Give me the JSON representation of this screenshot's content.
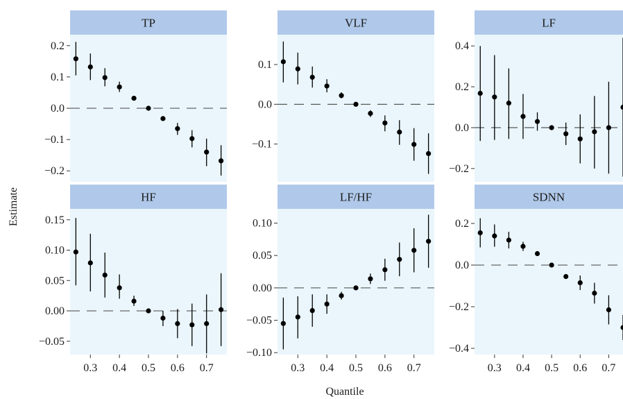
{
  "figure": {
    "xlabel": "Quantile",
    "ylabel": "Estimate"
  },
  "colors": {
    "panel_bg": "#eaf6fb",
    "strip_bg": "#b0c9ea",
    "point": "#000000",
    "reference_line": "#444444"
  },
  "chart_data": [
    {
      "type": "scatter",
      "title": "TP",
      "x": [
        0.25,
        0.3,
        0.35,
        0.4,
        0.45,
        0.5,
        0.55,
        0.6,
        0.65,
        0.7,
        0.75
      ],
      "y": [
        0.158,
        0.132,
        0.098,
        0.068,
        0.032,
        0.0,
        -0.033,
        -0.065,
        -0.097,
        -0.14,
        -0.168
      ],
      "lower": [
        0.105,
        0.09,
        0.07,
        0.052,
        0.026,
        -0.003,
        -0.038,
        -0.085,
        -0.125,
        -0.185,
        -0.215
      ],
      "upper": [
        0.212,
        0.175,
        0.128,
        0.085,
        0.038,
        0.003,
        -0.028,
        -0.047,
        -0.07,
        -0.097,
        -0.118
      ],
      "xlim": [
        0.23,
        0.77
      ],
      "ylim": [
        -0.235,
        0.235
      ],
      "x_ticks": [
        0.3,
        0.4,
        0.5,
        0.6,
        0.7
      ],
      "x_tick_labels": [
        "0.3",
        "0.4",
        "0.5",
        "0.6",
        "0.7"
      ],
      "y_ticks": [
        -0.2,
        -0.1,
        0.0,
        0.1,
        0.2
      ],
      "y_tick_labels": [
        "−0.2",
        "−0.1",
        "0.0",
        "0.1",
        "0.2"
      ],
      "reference_line": 0,
      "grid": false
    },
    {
      "type": "scatter",
      "title": "VLF",
      "x": [
        0.25,
        0.3,
        0.35,
        0.4,
        0.45,
        0.5,
        0.55,
        0.6,
        0.65,
        0.7,
        0.75
      ],
      "y": [
        0.107,
        0.089,
        0.068,
        0.046,
        0.022,
        0.0,
        -0.023,
        -0.047,
        -0.07,
        -0.101,
        -0.124
      ],
      "lower": [
        0.055,
        0.05,
        0.042,
        0.03,
        0.015,
        -0.002,
        -0.032,
        -0.068,
        -0.102,
        -0.142,
        -0.175
      ],
      "upper": [
        0.158,
        0.13,
        0.095,
        0.063,
        0.03,
        0.002,
        -0.015,
        -0.028,
        -0.04,
        -0.06,
        -0.073
      ],
      "xlim": [
        0.23,
        0.77
      ],
      "ylim": [
        -0.195,
        0.175
      ],
      "x_ticks": [
        0.3,
        0.4,
        0.5,
        0.6,
        0.7
      ],
      "x_tick_labels": [
        "0.3",
        "0.4",
        "0.5",
        "0.6",
        "0.7"
      ],
      "y_ticks": [
        -0.1,
        0.0,
        0.1
      ],
      "y_tick_labels": [
        "−0.1",
        "0.0",
        "0.1"
      ],
      "reference_line": 0,
      "grid": false
    },
    {
      "type": "scatter",
      "title": "LF",
      "x": [
        0.25,
        0.3,
        0.35,
        0.4,
        0.45,
        0.5,
        0.55,
        0.6,
        0.65,
        0.7,
        0.75
      ],
      "y": [
        0.168,
        0.15,
        0.12,
        0.055,
        0.03,
        0.0,
        -0.03,
        -0.055,
        -0.02,
        0.0,
        0.1
      ],
      "lower": [
        -0.065,
        -0.06,
        -0.055,
        -0.055,
        -0.015,
        -0.005,
        -0.085,
        -0.175,
        -0.2,
        -0.225,
        -0.24
      ],
      "upper": [
        0.4,
        0.355,
        0.29,
        0.165,
        0.075,
        0.005,
        0.025,
        0.065,
        0.155,
        0.225,
        0.44
      ],
      "xlim": [
        0.23,
        0.75
      ],
      "ylim": [
        -0.265,
        0.455
      ],
      "x_ticks": [
        0.3,
        0.4,
        0.5,
        0.6,
        0.7
      ],
      "x_tick_labels": [
        "0.3",
        "0.4",
        "0.5",
        "0.6",
        "0.7"
      ],
      "y_ticks": [
        -0.2,
        0.0,
        0.2,
        0.4
      ],
      "y_tick_labels": [
        "−0.2",
        "0.0",
        "0.2",
        "0.4"
      ],
      "reference_line": 0,
      "grid": false
    },
    {
      "type": "scatter",
      "title": "HF",
      "x": [
        0.25,
        0.3,
        0.35,
        0.4,
        0.45,
        0.5,
        0.55,
        0.6,
        0.65,
        0.7,
        0.75
      ],
      "y": [
        0.097,
        0.079,
        0.059,
        0.038,
        0.016,
        0.0,
        -0.012,
        -0.021,
        -0.023,
        -0.021,
        0.002
      ],
      "lower": [
        0.042,
        0.032,
        0.022,
        0.02,
        0.008,
        -0.002,
        -0.025,
        -0.045,
        -0.058,
        -0.07,
        -0.058
      ],
      "upper": [
        0.153,
        0.127,
        0.096,
        0.06,
        0.025,
        0.002,
        0.0,
        0.003,
        0.012,
        0.027,
        0.062
      ],
      "xlim": [
        0.23,
        0.77
      ],
      "ylim": [
        -0.072,
        0.168
      ],
      "x_ticks": [
        0.3,
        0.4,
        0.5,
        0.6,
        0.7
      ],
      "x_tick_labels": [
        "0.3",
        "0.4",
        "0.5",
        "0.6",
        "0.7"
      ],
      "y_ticks": [
        -0.05,
        0.0,
        0.05,
        0.1,
        0.15
      ],
      "y_tick_labels": [
        "−0.05",
        "0.00",
        "0.05",
        "0.10",
        "0.15"
      ],
      "reference_line": 0,
      "grid": false
    },
    {
      "type": "scatter",
      "title": "LF/HF",
      "x": [
        0.25,
        0.3,
        0.35,
        0.4,
        0.45,
        0.5,
        0.55,
        0.6,
        0.65,
        0.7,
        0.75
      ],
      "y": [
        -0.055,
        -0.045,
        -0.035,
        -0.025,
        -0.012,
        0.0,
        0.014,
        0.028,
        0.044,
        0.058,
        0.072
      ],
      "lower": [
        -0.095,
        -0.078,
        -0.06,
        -0.04,
        -0.018,
        -0.002,
        0.006,
        0.011,
        0.018,
        0.024,
        0.031
      ],
      "upper": [
        -0.015,
        -0.013,
        -0.01,
        -0.01,
        -0.006,
        0.002,
        0.022,
        0.045,
        0.07,
        0.092,
        0.113
      ],
      "xlim": [
        0.23,
        0.77
      ],
      "ylim": [
        -0.103,
        0.122
      ],
      "x_ticks": [
        0.3,
        0.4,
        0.5,
        0.6,
        0.7
      ],
      "x_tick_labels": [
        "0.3",
        "0.4",
        "0.5",
        "0.6",
        "0.7"
      ],
      "y_ticks": [
        -0.1,
        -0.05,
        0.0,
        0.05,
        0.1
      ],
      "y_tick_labels": [
        "−0.10",
        "−0.05",
        "0.00",
        "0.05",
        "0.10"
      ],
      "reference_line": 0,
      "grid": false
    },
    {
      "type": "scatter",
      "title": "SDNN",
      "x": [
        0.25,
        0.3,
        0.35,
        0.4,
        0.45,
        0.5,
        0.55,
        0.6,
        0.65,
        0.7,
        0.75
      ],
      "y": [
        0.155,
        0.14,
        0.12,
        0.09,
        0.055,
        0.0,
        -0.055,
        -0.085,
        -0.135,
        -0.215,
        -0.3
      ],
      "lower": [
        0.085,
        0.088,
        0.08,
        0.068,
        0.045,
        -0.005,
        -0.065,
        -0.12,
        -0.185,
        -0.285,
        -0.36
      ],
      "upper": [
        0.225,
        0.195,
        0.16,
        0.112,
        0.065,
        0.005,
        -0.045,
        -0.05,
        -0.085,
        -0.145,
        -0.24
      ],
      "xlim": [
        0.23,
        0.75
      ],
      "ylim": [
        -0.43,
        0.27
      ],
      "x_ticks": [
        0.3,
        0.4,
        0.5,
        0.6,
        0.7
      ],
      "x_tick_labels": [
        "0.3",
        "0.4",
        "0.5",
        "0.6",
        "0.7"
      ],
      "y_ticks": [
        -0.4,
        -0.2,
        0.0,
        0.2
      ],
      "y_tick_labels": [
        "−0.4",
        "−0.2",
        "0.0",
        "0.2"
      ],
      "reference_line": 0,
      "grid": false
    }
  ]
}
